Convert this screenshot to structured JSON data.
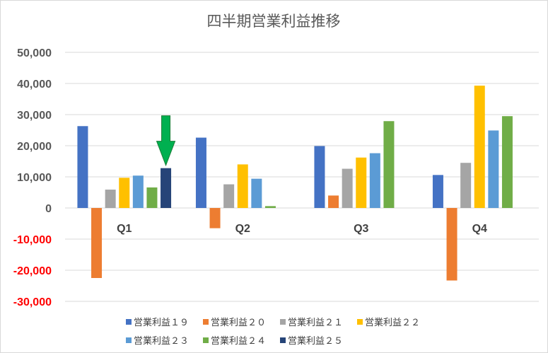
{
  "chart_data": {
    "type": "bar",
    "title": "四半期営業利益推移",
    "categories": [
      "Q1",
      "Q2",
      "Q3",
      "Q4"
    ],
    "ylim": [
      -30000,
      50000
    ],
    "yticks": [
      50000,
      40000,
      30000,
      20000,
      10000,
      0,
      -10000,
      -20000,
      -30000
    ],
    "ytick_labels": [
      "50,000",
      "40,000",
      "30,000",
      "20,000",
      "10,000",
      "0",
      "-10,000",
      "-20,000",
      "-30,000"
    ],
    "negative_tick_color": "#ff0000",
    "positive_tick_color": "#595959",
    "grid": true,
    "legend_position": "bottom",
    "series": [
      {
        "name": "営業利益１９",
        "color": "#4472c4",
        "values": [
          26300,
          22600,
          19900,
          10600
        ]
      },
      {
        "name": "営業利益２０",
        "color": "#ed7d31",
        "values": [
          -22500,
          -6500,
          4000,
          -23300
        ]
      },
      {
        "name": "営業利益２１",
        "color": "#a5a5a5",
        "values": [
          5900,
          7600,
          12600,
          14500
        ]
      },
      {
        "name": "営業利益２２",
        "color": "#ffc000",
        "values": [
          9700,
          14000,
          16200,
          39300
        ]
      },
      {
        "name": "営業利益２３",
        "color": "#5b9bd5",
        "values": [
          10400,
          9400,
          17600,
          24900
        ]
      },
      {
        "name": "営業利益２４",
        "color": "#70ad47",
        "values": [
          6600,
          600,
          27900,
          29500
        ]
      },
      {
        "name": "営業利益２５",
        "color": "#264478",
        "values": [
          12800,
          null,
          null,
          null
        ]
      }
    ],
    "annotation": {
      "type": "arrow",
      "category": "Q1",
      "series": "営業利益２５",
      "color": "#00b050",
      "shape": "green-down-arrow"
    }
  }
}
